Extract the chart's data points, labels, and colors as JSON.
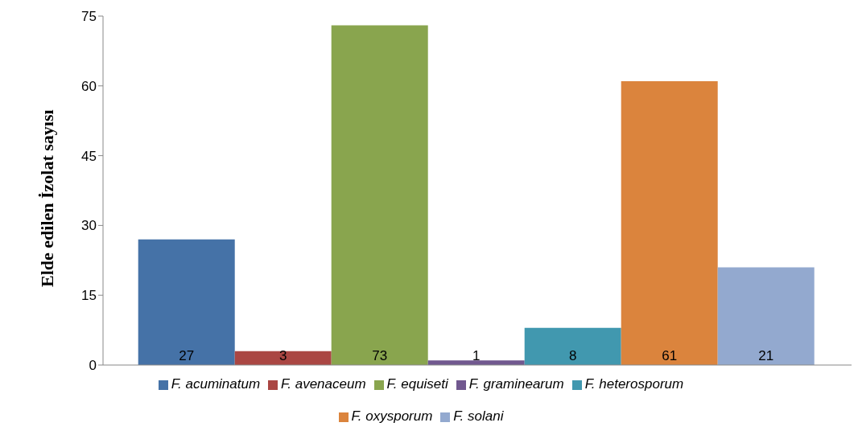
{
  "chart_data": {
    "type": "bar",
    "ylabel": "Elde edilen İzolat sayısı",
    "categories": [
      null
    ],
    "series": [
      {
        "name": "F. acuminatum",
        "color": "#4572a7",
        "values": [
          27
        ]
      },
      {
        "name": "F. avenaceum",
        "color": "#aa4643",
        "values": [
          3
        ]
      },
      {
        "name": "F. equiseti",
        "color": "#89a54e",
        "values": [
          73
        ]
      },
      {
        "name": "F. graminearum",
        "color": "#71588f",
        "values": [
          1
        ]
      },
      {
        "name": "F. heterosporum",
        "color": "#4198af",
        "values": [
          8
        ]
      },
      {
        "name": "F. oxysporum",
        "color": "#db843d",
        "values": [
          61
        ]
      },
      {
        "name": "F. solani",
        "color": "#93a9cf",
        "values": [
          21
        ]
      }
    ],
    "ylim": [
      0,
      75
    ],
    "yticks": [
      0,
      15,
      30,
      45,
      60,
      75
    ],
    "grid": false,
    "legend": "bottom",
    "data_labels": true
  }
}
